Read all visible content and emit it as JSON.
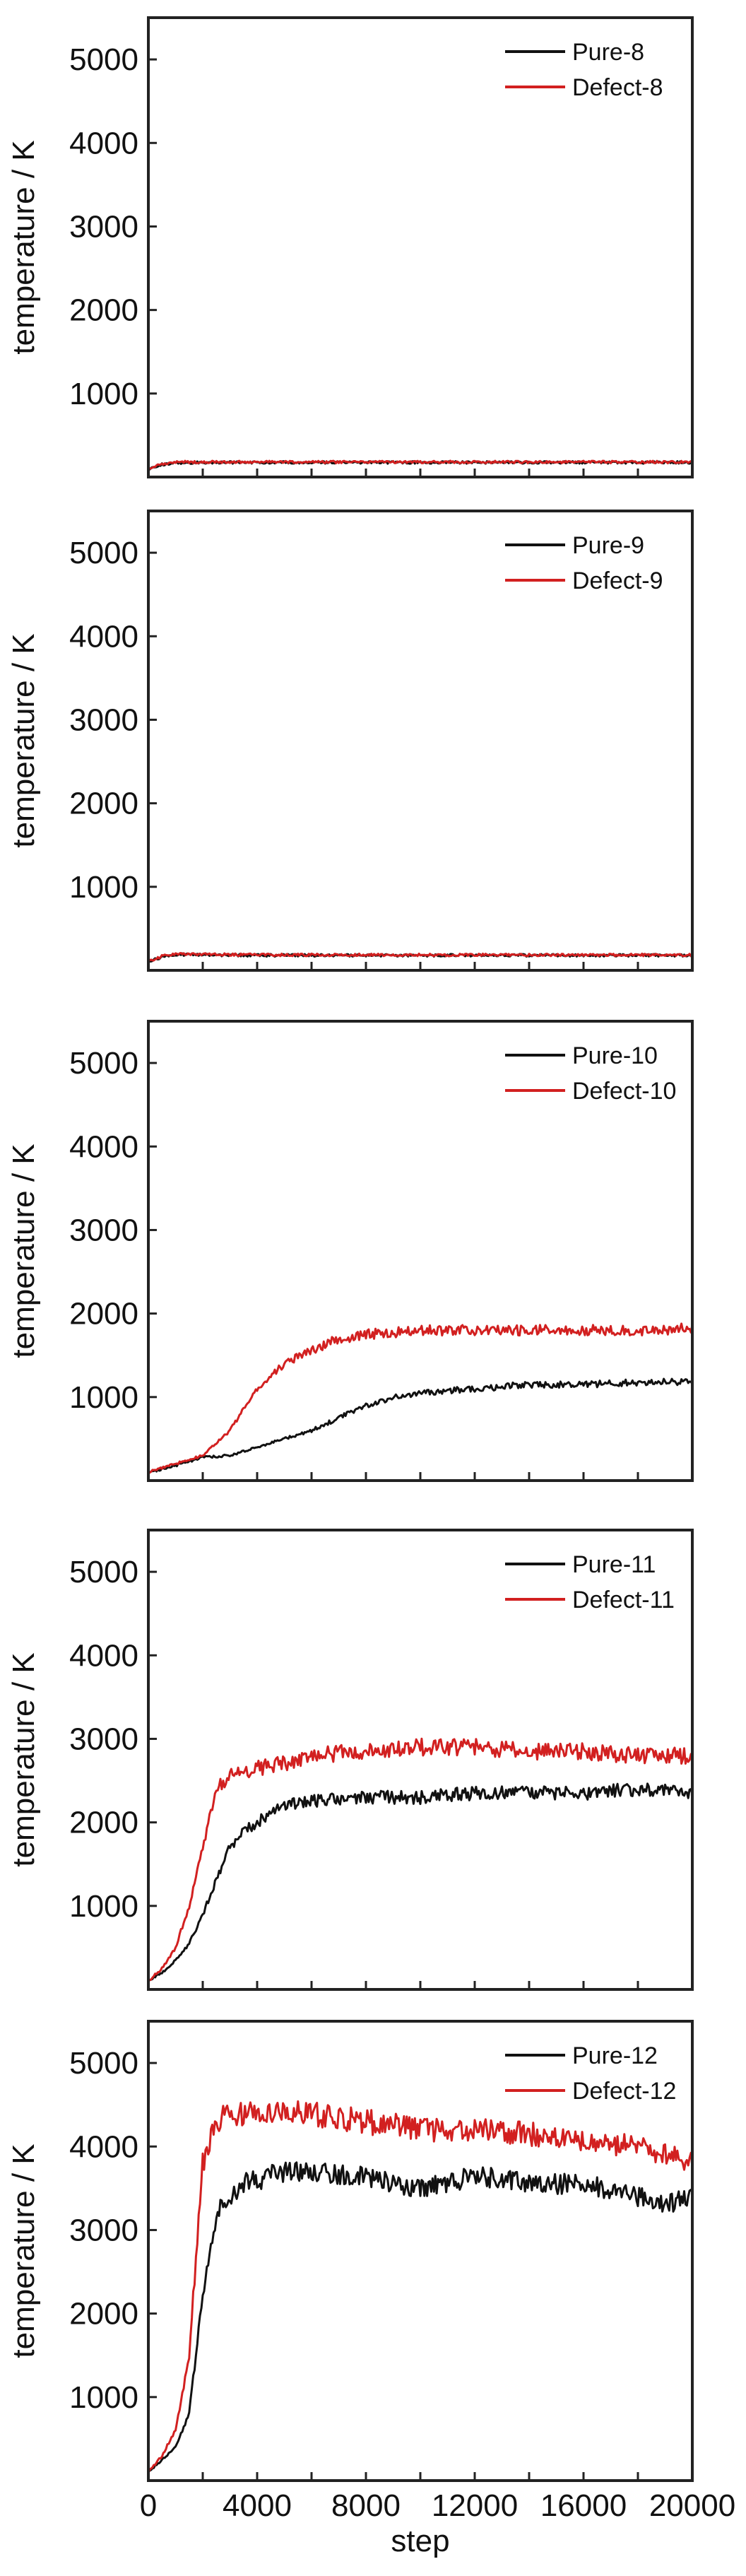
{
  "colors": {
    "pure": "#111111",
    "defect": "#d22020",
    "axis": "#222222"
  },
  "shared": {
    "ylabel": "temperature / K",
    "xlabel": "step",
    "xlim": [
      0,
      20000
    ],
    "ylim": [
      0,
      5500
    ],
    "yticks": [
      1000,
      2000,
      3000,
      4000,
      5000
    ],
    "xticks": [
      0,
      4000,
      8000,
      12000,
      16000,
      20000
    ],
    "x_tick_labels": [
      "0",
      "4000",
      "8000",
      "12000",
      "16000",
      "20000"
    ]
  },
  "chart_data": [
    {
      "type": "line",
      "ylabel": "temperature / K",
      "xlabel": "",
      "xlim": [
        0,
        20000
      ],
      "ylim": [
        0,
        5500
      ],
      "legend_position": "top-right",
      "series": [
        {
          "name": "Pure-8",
          "color": "#111111",
          "x": [
            0,
            500,
            1000,
            2000,
            4000,
            8000,
            12000,
            16000,
            20000
          ],
          "y": [
            100,
            150,
            170,
            175,
            175,
            175,
            175,
            175,
            175
          ]
        },
        {
          "name": "Defect-8",
          "color": "#d22020",
          "x": [
            0,
            500,
            1000,
            2000,
            4000,
            8000,
            12000,
            16000,
            20000
          ],
          "y": [
            100,
            160,
            180,
            180,
            180,
            180,
            180,
            180,
            180
          ]
        }
      ]
    },
    {
      "type": "line",
      "ylabel": "temperature / K",
      "xlabel": "",
      "xlim": [
        0,
        20000
      ],
      "ylim": [
        0,
        5500
      ],
      "legend_position": "top-right",
      "series": [
        {
          "name": "Pure-9",
          "color": "#111111",
          "x": [
            0,
            500,
            1000,
            2000,
            4000,
            8000,
            12000,
            16000,
            20000
          ],
          "y": [
            100,
            160,
            190,
            185,
            180,
            180,
            180,
            180,
            180
          ]
        },
        {
          "name": "Defect-9",
          "color": "#d22020",
          "x": [
            0,
            500,
            1000,
            2000,
            4000,
            8000,
            12000,
            16000,
            20000
          ],
          "y": [
            100,
            170,
            200,
            190,
            185,
            185,
            185,
            185,
            185
          ]
        }
      ]
    },
    {
      "type": "line",
      "ylabel": "temperature / K",
      "xlabel": "",
      "xlim": [
        0,
        20000
      ],
      "ylim": [
        0,
        5500
      ],
      "legend_position": "top-right",
      "series": [
        {
          "name": "Pure-10",
          "color": "#111111",
          "x": [
            0,
            1000,
            2000,
            3000,
            4000,
            5000,
            6000,
            7000,
            8000,
            9000,
            10000,
            12000,
            14000,
            16000,
            18000,
            20000
          ],
          "y": [
            100,
            180,
            280,
            300,
            400,
            500,
            600,
            750,
            900,
            1000,
            1050,
            1100,
            1150,
            1150,
            1180,
            1180
          ]
        },
        {
          "name": "Defect-10",
          "color": "#d22020",
          "x": [
            0,
            1000,
            2000,
            3000,
            4000,
            5000,
            6000,
            7000,
            8000,
            10000,
            12000,
            14000,
            16000,
            18000,
            20000
          ],
          "y": [
            100,
            200,
            300,
            600,
            1100,
            1400,
            1550,
            1700,
            1750,
            1800,
            1800,
            1800,
            1800,
            1800,
            1820
          ]
        }
      ]
    },
    {
      "type": "line",
      "ylabel": "temperature / K",
      "xlabel": "",
      "xlim": [
        0,
        20000
      ],
      "ylim": [
        0,
        5500
      ],
      "legend_position": "top-right",
      "series": [
        {
          "name": "Pure-11",
          "color": "#111111",
          "x": [
            0,
            500,
            1000,
            1500,
            2000,
            2500,
            3000,
            3500,
            4000,
            4500,
            5000,
            6000,
            8000,
            10000,
            12000,
            14000,
            16000,
            18000,
            20000
          ],
          "y": [
            100,
            200,
            350,
            550,
            900,
            1300,
            1700,
            1900,
            2000,
            2100,
            2200,
            2250,
            2300,
            2300,
            2350,
            2350,
            2350,
            2400,
            2350
          ]
        },
        {
          "name": "Defect-11",
          "color": "#d22020",
          "x": [
            0,
            500,
            1000,
            1500,
            2000,
            2500,
            3000,
            3500,
            4000,
            5000,
            6000,
            8000,
            10000,
            12000,
            14000,
            16000,
            18000,
            20000
          ],
          "y": [
            100,
            250,
            500,
            1000,
            1700,
            2400,
            2550,
            2600,
            2650,
            2700,
            2800,
            2850,
            2900,
            2900,
            2850,
            2850,
            2800,
            2800
          ]
        }
      ]
    },
    {
      "type": "line",
      "ylabel": "temperature / K",
      "xlabel": "step",
      "xlim": [
        0,
        20000
      ],
      "ylim": [
        0,
        5500
      ],
      "legend_position": "top-right",
      "series": [
        {
          "name": "Pure-12",
          "color": "#111111",
          "x": [
            0,
            500,
            1000,
            1500,
            2000,
            2500,
            3000,
            3500,
            4000,
            5000,
            6000,
            8000,
            10000,
            12000,
            14000,
            16000,
            18000,
            19000,
            20000
          ],
          "y": [
            100,
            250,
            400,
            800,
            2200,
            3200,
            3400,
            3550,
            3600,
            3700,
            3700,
            3650,
            3500,
            3650,
            3550,
            3550,
            3400,
            3300,
            3400
          ]
        },
        {
          "name": "Defect-12",
          "color": "#d22020",
          "x": [
            0,
            500,
            1000,
            1500,
            2000,
            2500,
            3000,
            3500,
            4000,
            5000,
            6000,
            8000,
            10000,
            12000,
            14000,
            16000,
            18000,
            19000,
            20000
          ],
          "y": [
            100,
            300,
            600,
            1500,
            3800,
            4300,
            4400,
            4400,
            4400,
            4450,
            4400,
            4300,
            4200,
            4200,
            4150,
            4050,
            4000,
            3900,
            3800
          ]
        }
      ]
    }
  ]
}
